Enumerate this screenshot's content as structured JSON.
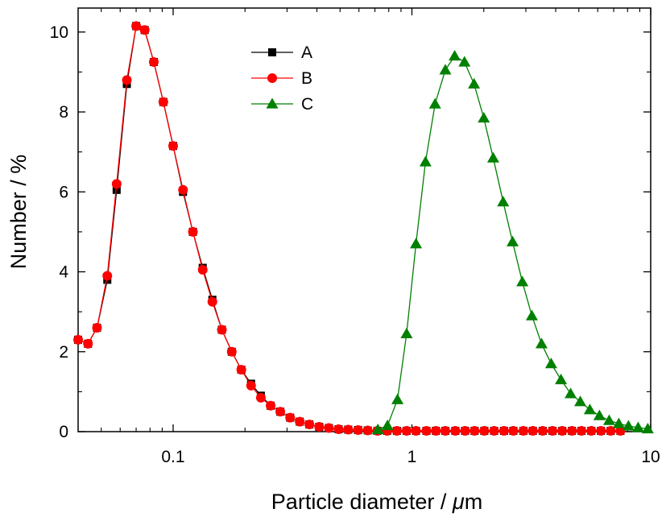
{
  "chart_data": {
    "type": "line",
    "title": "",
    "xlabel": "Particle diameter / ",
    "xlabel_unit": "μ",
    "xlabel_unit_suffix": "m",
    "ylabel": "Number / %",
    "x_scale": "log",
    "xlim": [
      0.04,
      10
    ],
    "ylim": [
      0,
      10.6
    ],
    "x_ticks": [
      0.1,
      1,
      10
    ],
    "x_tick_labels": [
      "0.1",
      "1",
      "10"
    ],
    "y_ticks": [
      0,
      2,
      4,
      6,
      8,
      10
    ],
    "y_tick_labels": [
      "0",
      "2",
      "4",
      "6",
      "8",
      "10"
    ],
    "grid": false,
    "legend_position": "top-left",
    "series": [
      {
        "name": "A",
        "color": "#000000",
        "marker": "square",
        "points": [
          [
            0.04,
            2.3
          ],
          [
            0.044,
            2.2
          ],
          [
            0.048,
            2.6
          ],
          [
            0.053,
            3.8
          ],
          [
            0.058,
            6.05
          ],
          [
            0.064,
            8.7
          ],
          [
            0.07,
            10.15
          ],
          [
            0.076,
            10.05
          ],
          [
            0.083,
            9.25
          ],
          [
            0.091,
            8.25
          ],
          [
            0.1,
            7.15
          ],
          [
            0.11,
            6.0
          ],
          [
            0.121,
            5.0
          ],
          [
            0.133,
            4.1
          ],
          [
            0.146,
            3.3
          ],
          [
            0.16,
            2.55
          ],
          [
            0.176,
            2.0
          ],
          [
            0.193,
            1.55
          ],
          [
            0.212,
            1.2
          ],
          [
            0.233,
            0.9
          ],
          [
            0.256,
            0.65
          ],
          [
            0.281,
            0.5
          ],
          [
            0.309,
            0.35
          ],
          [
            0.339,
            0.25
          ],
          [
            0.372,
            0.18
          ],
          [
            0.409,
            0.12
          ],
          [
            0.449,
            0.09
          ],
          [
            0.493,
            0.06
          ],
          [
            0.541,
            0.05
          ],
          [
            0.595,
            0.04
          ],
          [
            0.653,
            0.03
          ],
          [
            0.717,
            0.02
          ],
          [
            0.788,
            0.02
          ],
          [
            0.865,
            0.02
          ],
          [
            0.95,
            0.02
          ],
          [
            1.04,
            0.02
          ],
          [
            1.15,
            0.02
          ],
          [
            1.26,
            0.02
          ],
          [
            1.38,
            0.02
          ],
          [
            1.52,
            0.02
          ],
          [
            1.67,
            0.02
          ],
          [
            1.83,
            0.02
          ],
          [
            2.01,
            0.02
          ],
          [
            2.21,
            0.02
          ],
          [
            2.43,
            0.02
          ],
          [
            2.66,
            0.02
          ],
          [
            2.93,
            0.02
          ],
          [
            3.21,
            0.02
          ],
          [
            3.53,
            0.02
          ],
          [
            3.88,
            0.02
          ],
          [
            4.26,
            0.02
          ],
          [
            4.68,
            0.02
          ],
          [
            5.13,
            0.02
          ],
          [
            5.64,
            0.02
          ],
          [
            6.19,
            0.02
          ],
          [
            6.8,
            0.02
          ],
          [
            7.47,
            0.02
          ]
        ]
      },
      {
        "name": "B",
        "color": "#ff0000",
        "marker": "circle",
        "points": [
          [
            0.04,
            2.3
          ],
          [
            0.044,
            2.2
          ],
          [
            0.048,
            2.6
          ],
          [
            0.053,
            3.9
          ],
          [
            0.058,
            6.2
          ],
          [
            0.064,
            8.8
          ],
          [
            0.07,
            10.15
          ],
          [
            0.076,
            10.05
          ],
          [
            0.083,
            9.25
          ],
          [
            0.091,
            8.25
          ],
          [
            0.1,
            7.15
          ],
          [
            0.11,
            6.05
          ],
          [
            0.121,
            5.0
          ],
          [
            0.133,
            4.05
          ],
          [
            0.146,
            3.25
          ],
          [
            0.16,
            2.55
          ],
          [
            0.176,
            2.0
          ],
          [
            0.193,
            1.55
          ],
          [
            0.212,
            1.15
          ],
          [
            0.233,
            0.85
          ],
          [
            0.256,
            0.65
          ],
          [
            0.281,
            0.5
          ],
          [
            0.309,
            0.35
          ],
          [
            0.339,
            0.25
          ],
          [
            0.372,
            0.18
          ],
          [
            0.409,
            0.12
          ],
          [
            0.449,
            0.09
          ],
          [
            0.493,
            0.06
          ],
          [
            0.541,
            0.05
          ],
          [
            0.595,
            0.04
          ],
          [
            0.653,
            0.03
          ],
          [
            0.717,
            0.02
          ],
          [
            0.788,
            0.02
          ],
          [
            0.865,
            0.02
          ],
          [
            0.95,
            0.02
          ],
          [
            1.04,
            0.02
          ],
          [
            1.15,
            0.02
          ],
          [
            1.26,
            0.02
          ],
          [
            1.38,
            0.02
          ],
          [
            1.52,
            0.02
          ],
          [
            1.67,
            0.02
          ],
          [
            1.83,
            0.02
          ],
          [
            2.01,
            0.02
          ],
          [
            2.21,
            0.02
          ],
          [
            2.43,
            0.02
          ],
          [
            2.66,
            0.02
          ],
          [
            2.93,
            0.02
          ],
          [
            3.21,
            0.02
          ],
          [
            3.53,
            0.02
          ],
          [
            3.88,
            0.02
          ],
          [
            4.26,
            0.02
          ],
          [
            4.68,
            0.02
          ],
          [
            5.13,
            0.02
          ],
          [
            5.64,
            0.02
          ],
          [
            6.19,
            0.02
          ],
          [
            6.8,
            0.02
          ],
          [
            7.47,
            0.02
          ]
        ]
      },
      {
        "name": "C",
        "color": "#008000",
        "marker": "triangle",
        "points": [
          [
            0.72,
            0.05
          ],
          [
            0.79,
            0.15
          ],
          [
            0.87,
            0.8
          ],
          [
            0.95,
            2.45
          ],
          [
            1.04,
            4.7
          ],
          [
            1.14,
            6.75
          ],
          [
            1.25,
            8.2
          ],
          [
            1.38,
            9.05
          ],
          [
            1.51,
            9.4
          ],
          [
            1.66,
            9.25
          ],
          [
            1.82,
            8.7
          ],
          [
            2.0,
            7.85
          ],
          [
            2.19,
            6.85
          ],
          [
            2.41,
            5.75
          ],
          [
            2.64,
            4.75
          ],
          [
            2.9,
            3.75
          ],
          [
            3.18,
            2.9
          ],
          [
            3.49,
            2.2
          ],
          [
            3.83,
            1.7
          ],
          [
            4.21,
            1.3
          ],
          [
            4.62,
            0.95
          ],
          [
            5.07,
            0.75
          ],
          [
            5.56,
            0.55
          ],
          [
            6.1,
            0.4
          ],
          [
            6.7,
            0.28
          ],
          [
            7.35,
            0.2
          ],
          [
            8.07,
            0.14
          ],
          [
            8.86,
            0.1
          ],
          [
            9.72,
            0.07
          ]
        ]
      }
    ]
  }
}
